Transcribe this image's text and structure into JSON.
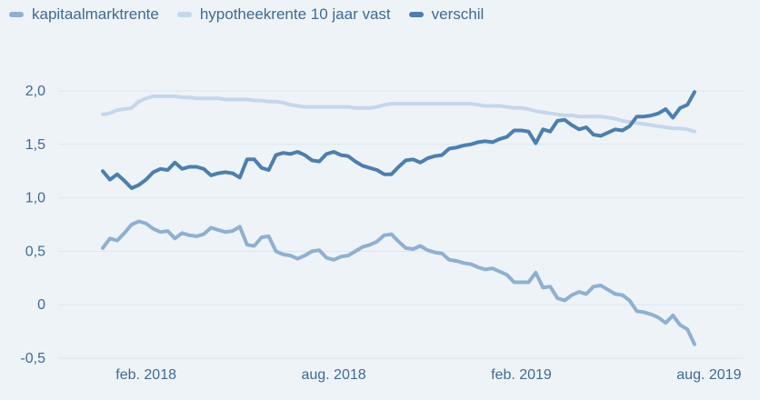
{
  "chart_data": {
    "type": "line",
    "title": "",
    "xlabel": "",
    "ylabel": "",
    "ylim": [
      -0.5,
      2.0
    ],
    "yticks": [
      -0.5,
      0,
      0.5,
      1.0,
      1.5,
      2.0
    ],
    "ytick_labels": [
      "-0,5",
      "0",
      "0,5",
      "1,0",
      "1,5",
      "2,0"
    ],
    "xtick_labels": [
      "feb. 2018",
      "aug. 2018",
      "feb. 2019",
      "aug. 2019"
    ],
    "xtick_index": [
      6,
      32,
      58,
      84
    ],
    "grid": "horizontal",
    "legend_position": "top-left",
    "x_start": "2018-01",
    "x_end": "2019-08",
    "series": [
      {
        "name": "kapitaalmarktrente",
        "color": "#8fb0d0",
        "values": [
          0.53,
          0.62,
          0.6,
          0.67,
          0.75,
          0.78,
          0.76,
          0.71,
          0.68,
          0.69,
          0.62,
          0.67,
          0.65,
          0.64,
          0.66,
          0.72,
          0.7,
          0.68,
          0.69,
          0.73,
          0.56,
          0.55,
          0.63,
          0.64,
          0.5,
          0.47,
          0.46,
          0.43,
          0.46,
          0.5,
          0.51,
          0.44,
          0.42,
          0.45,
          0.46,
          0.5,
          0.54,
          0.56,
          0.59,
          0.65,
          0.66,
          0.59,
          0.53,
          0.52,
          0.55,
          0.51,
          0.49,
          0.48,
          0.42,
          0.41,
          0.39,
          0.38,
          0.35,
          0.33,
          0.34,
          0.31,
          0.28,
          0.21,
          0.21,
          0.21,
          0.3,
          0.16,
          0.17,
          0.06,
          0.04,
          0.09,
          0.12,
          0.1,
          0.17,
          0.18,
          0.14,
          0.1,
          0.09,
          0.04,
          -0.06,
          -0.07,
          -0.09,
          -0.12,
          -0.17,
          -0.1,
          -0.19,
          -0.23,
          -0.37
        ]
      },
      {
        "name": "hypotheekrente 10 jaar vast",
        "color": "#c5d7ea",
        "values": [
          1.78,
          1.79,
          1.82,
          1.83,
          1.84,
          1.9,
          1.93,
          1.95,
          1.95,
          1.95,
          1.95,
          1.94,
          1.94,
          1.93,
          1.93,
          1.93,
          1.93,
          1.92,
          1.92,
          1.92,
          1.92,
          1.91,
          1.91,
          1.9,
          1.9,
          1.89,
          1.87,
          1.86,
          1.85,
          1.85,
          1.85,
          1.85,
          1.85,
          1.85,
          1.85,
          1.84,
          1.84,
          1.84,
          1.85,
          1.87,
          1.88,
          1.88,
          1.88,
          1.88,
          1.88,
          1.88,
          1.88,
          1.88,
          1.88,
          1.88,
          1.88,
          1.88,
          1.87,
          1.86,
          1.86,
          1.86,
          1.85,
          1.84,
          1.84,
          1.83,
          1.81,
          1.8,
          1.79,
          1.78,
          1.77,
          1.77,
          1.76,
          1.76,
          1.76,
          1.76,
          1.75,
          1.74,
          1.72,
          1.71,
          1.7,
          1.69,
          1.68,
          1.67,
          1.66,
          1.65,
          1.65,
          1.64,
          1.62
        ]
      },
      {
        "name": "verschil",
        "color": "#4c7fae",
        "values": [
          1.25,
          1.17,
          1.22,
          1.16,
          1.09,
          1.12,
          1.17,
          1.24,
          1.27,
          1.26,
          1.33,
          1.27,
          1.29,
          1.29,
          1.27,
          1.21,
          1.23,
          1.24,
          1.23,
          1.19,
          1.36,
          1.36,
          1.28,
          1.26,
          1.4,
          1.42,
          1.41,
          1.43,
          1.4,
          1.35,
          1.34,
          1.41,
          1.43,
          1.4,
          1.39,
          1.34,
          1.3,
          1.28,
          1.26,
          1.22,
          1.22,
          1.29,
          1.35,
          1.36,
          1.33,
          1.37,
          1.39,
          1.4,
          1.46,
          1.47,
          1.49,
          1.5,
          1.52,
          1.53,
          1.52,
          1.55,
          1.57,
          1.63,
          1.63,
          1.62,
          1.51,
          1.64,
          1.62,
          1.72,
          1.73,
          1.68,
          1.64,
          1.66,
          1.59,
          1.58,
          1.61,
          1.64,
          1.63,
          1.67,
          1.76,
          1.76,
          1.77,
          1.79,
          1.83,
          1.75,
          1.84,
          1.87,
          1.99
        ]
      }
    ]
  }
}
